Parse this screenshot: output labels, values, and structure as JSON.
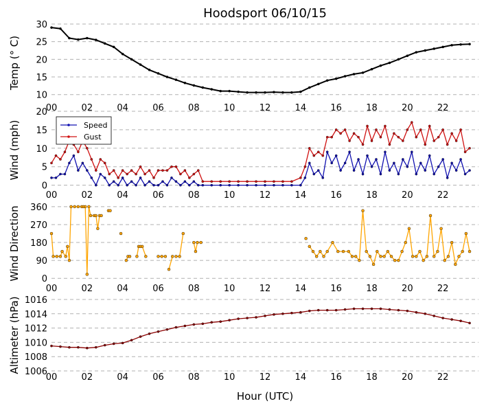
{
  "title": "Hoodsport 06/10/15",
  "xlabel": "Hour (UTC)",
  "x_ticks": [
    "00",
    "02",
    "04",
    "06",
    "08",
    "10",
    "12",
    "14",
    "16",
    "18",
    "20",
    "22"
  ],
  "x_tick_values": [
    0,
    2,
    4,
    6,
    8,
    10,
    12,
    14,
    16,
    18,
    20,
    22
  ],
  "xlim": [
    0,
    24
  ],
  "chart_data": [
    {
      "type": "line",
      "ylabel": "Temp ($^\\circ$C)",
      "ylabel_display": "Temp (° C)",
      "ylim": [
        8,
        30
      ],
      "yticks": [
        10,
        15,
        20,
        25,
        30
      ],
      "grid": "horizontal dashed",
      "series": [
        {
          "color": "#000000",
          "marker": "dot",
          "x": [
            0,
            0.5,
            1,
            1.5,
            2,
            2.5,
            3,
            3.5,
            4,
            4.5,
            5,
            5.5,
            6,
            6.5,
            7,
            7.5,
            8,
            8.5,
            9,
            9.5,
            10,
            10.5,
            11,
            11.5,
            12,
            12.5,
            13,
            13.5,
            14,
            14.5,
            15,
            15.5,
            16,
            16.5,
            17,
            17.5,
            18,
            18.5,
            19,
            19.5,
            20,
            20.5,
            21,
            21.5,
            22,
            22.5,
            23,
            23.5
          ],
          "values": [
            29,
            28.7,
            26,
            25.6,
            26,
            25.5,
            24.5,
            23.5,
            21.5,
            20,
            18.5,
            17,
            16,
            15,
            14.2,
            13.3,
            12.6,
            12,
            11.5,
            11,
            11,
            10.8,
            10.6,
            10.6,
            10.6,
            10.7,
            10.6,
            10.6,
            10.8,
            12,
            13,
            14,
            14.5,
            15.2,
            15.8,
            16.2,
            17.2,
            18.2,
            19,
            20,
            21,
            22,
            22.5,
            23,
            23.5,
            24,
            24.2,
            24.3
          ]
        }
      ]
    },
    {
      "type": "line",
      "ylabel": "Wind (mph)",
      "ylim": [
        -1,
        20
      ],
      "yticks": [
        0,
        5,
        10,
        15,
        20
      ],
      "grid": "horizontal dashed",
      "legend": "upper-left",
      "series": [
        {
          "name": "Speed",
          "color": "#1010b0",
          "x": [
            0,
            0.25,
            0.5,
            0.75,
            1,
            1.25,
            1.5,
            1.75,
            2,
            2.25,
            2.5,
            2.75,
            3,
            3.25,
            3.5,
            3.75,
            4,
            4.25,
            4.5,
            4.75,
            5,
            5.25,
            5.5,
            5.75,
            6,
            6.25,
            6.5,
            6.75,
            7,
            7.25,
            7.5,
            7.75,
            8,
            8.25,
            8.5,
            9,
            9.5,
            10,
            10.5,
            11,
            11.5,
            12,
            12.5,
            13,
            13.5,
            14,
            14.25,
            14.5,
            14.75,
            15,
            15.25,
            15.5,
            15.75,
            16,
            16.25,
            16.5,
            16.75,
            17,
            17.25,
            17.5,
            17.75,
            18,
            18.25,
            18.5,
            18.75,
            19,
            19.25,
            19.5,
            19.75,
            20,
            20.25,
            20.5,
            20.75,
            21,
            21.25,
            21.5,
            21.75,
            22,
            22.25,
            22.5,
            22.75,
            23,
            23.25,
            23.5
          ],
          "values": [
            2,
            2,
            3,
            3,
            6,
            8,
            4,
            6,
            4,
            2,
            0,
            3,
            2,
            0,
            1,
            0,
            2,
            0,
            1,
            0,
            2,
            0,
            1,
            0,
            0,
            1,
            0,
            2,
            1,
            0,
            1,
            0,
            1,
            0,
            0,
            0,
            0,
            0,
            0,
            0,
            0,
            0,
            0,
            0,
            0,
            0,
            2,
            6,
            3,
            4,
            2,
            9,
            6,
            8,
            4,
            6,
            9,
            4,
            7,
            3,
            8,
            5,
            7,
            3,
            9,
            4,
            6,
            3,
            7,
            5,
            9,
            3,
            6,
            4,
            8,
            3,
            5,
            7,
            2,
            6,
            4,
            7,
            3,
            4
          ]
        },
        {
          "name": "Gust",
          "color": "#d01010",
          "x": [
            0,
            0.25,
            0.5,
            0.75,
            1,
            1.25,
            1.5,
            1.75,
            2,
            2.25,
            2.5,
            2.75,
            3,
            3.25,
            3.5,
            3.75,
            4,
            4.25,
            4.5,
            4.75,
            5,
            5.25,
            5.5,
            5.75,
            6,
            6.25,
            6.5,
            6.75,
            7,
            7.25,
            7.5,
            7.75,
            8,
            8.25,
            8.5,
            9,
            9.5,
            10,
            10.5,
            11,
            11.5,
            12,
            12.5,
            13,
            13.5,
            14,
            14.25,
            14.5,
            14.75,
            15,
            15.25,
            15.5,
            15.75,
            16,
            16.25,
            16.5,
            16.75,
            17,
            17.25,
            17.5,
            17.75,
            18,
            18.25,
            18.5,
            18.75,
            19,
            19.25,
            19.5,
            19.75,
            20,
            20.25,
            20.5,
            20.75,
            21,
            21.25,
            21.5,
            21.75,
            22,
            22.25,
            22.5,
            22.75,
            23,
            23.25,
            23.5
          ],
          "values": [
            6,
            8,
            7,
            9,
            12,
            11,
            9,
            12,
            10,
            7,
            4,
            7,
            6,
            3,
            4,
            2,
            4,
            3,
            4,
            3,
            5,
            3,
            4,
            2,
            4,
            4,
            4,
            5,
            5,
            3,
            4,
            2,
            3,
            4,
            1,
            1,
            1,
            1,
            1,
            1,
            1,
            1,
            1,
            1,
            1,
            2,
            5,
            10,
            8,
            9,
            8,
            13,
            13,
            15,
            14,
            15,
            12,
            14,
            13,
            11,
            16,
            12,
            15,
            13,
            16,
            11,
            14,
            13,
            12,
            15,
            17,
            13,
            15,
            11,
            16,
            12,
            13,
            15,
            11,
            14,
            12,
            15,
            9,
            10
          ]
        }
      ]
    },
    {
      "type": "line",
      "ylabel": "Wind Direction",
      "ylim": [
        -20,
        370
      ],
      "yticks": [
        0,
        90,
        180,
        270,
        360
      ],
      "grid": "horizontal dashed",
      "series": [
        {
          "color": "#ffa500",
          "segments": [
            {
              "x": [
                0,
                0.1,
                0.3,
                0.5,
                0.6,
                0.8,
                0.9,
                1.0,
                1.1,
                1.3,
                1.5,
                1.7,
                1.8,
                1.9,
                2.0,
                2.1,
                2.2,
                2.4,
                2.5,
                2.6,
                2.7,
                2.8
              ],
              "values": [
                225,
                110,
                110,
                110,
                135,
                110,
                160,
                90,
                360,
                360,
                360,
                360,
                360,
                360,
                20,
                360,
                315,
                315,
                315,
                250,
                315,
                315
              ]
            },
            {
              "x": [
                3.2,
                3.3
              ],
              "values": [
                340,
                340
              ]
            },
            {
              "x": [
                3.9
              ],
              "values": [
                225
              ]
            },
            {
              "x": [
                4.2,
                4.3,
                4.4
              ],
              "values": [
                90,
                110,
                110
              ]
            },
            {
              "x": [
                4.8,
                4.9,
                5.0,
                5.1,
                5.3
              ],
              "values": [
                110,
                160,
                160,
                160,
                110
              ]
            },
            {
              "x": [
                6.0,
                6.2,
                6.4
              ],
              "values": [
                110,
                110,
                110
              ]
            },
            {
              "x": [
                6.6,
                6.8
              ],
              "values": [
                45,
                110
              ]
            },
            {
              "x": [
                7.0,
                7.2,
                7.4
              ],
              "values": [
                110,
                110,
                225
              ]
            },
            {
              "x": [
                8.0,
                8.1,
                8.2,
                8.4
              ],
              "values": [
                180,
                135,
                180,
                180
              ]
            },
            {
              "x": [
                14.3
              ],
              "values": [
                200
              ]
            },
            {
              "x": [
                14.5,
                14.7,
                14.9,
                15.1,
                15.3,
                15.5,
                15.8,
                16.1,
                16.4,
                16.7,
                16.9,
                17.1,
                17.3,
                17.5,
                17.7,
                17.9,
                18.1,
                18.3,
                18.5,
                18.7,
                18.9,
                19.1,
                19.3,
                19.5,
                19.7,
                19.9,
                20.1,
                20.3,
                20.5,
                20.7,
                20.9,
                21.1,
                21.3,
                21.5,
                21.7,
                21.9,
                22.1,
                22.3,
                22.5,
                22.7,
                22.9,
                23.1,
                23.3,
                23.5
              ],
              "values": [
                160,
                135,
                110,
                135,
                110,
                135,
                180,
                135,
                135,
                135,
                110,
                110,
                90,
                340,
                135,
                110,
                70,
                135,
                110,
                110,
                135,
                110,
                90,
                90,
                135,
                180,
                250,
                110,
                110,
                135,
                90,
                110,
                315,
                110,
                135,
                250,
                90,
                110,
                180,
                70,
                110,
                135,
                225,
                135
              ]
            }
          ]
        }
      ]
    },
    {
      "type": "line",
      "ylabel": "Altimeter (hPa)",
      "ylim": [
        1006,
        1016
      ],
      "yticks": [
        1006,
        1008,
        1010,
        1012,
        1014,
        1016
      ],
      "grid": "horizontal dashed",
      "series": [
        {
          "color": "#8b0000",
          "x": [
            0,
            0.5,
            1,
            1.5,
            2,
            2.5,
            3,
            3.5,
            4,
            4.5,
            5,
            5.5,
            6,
            6.5,
            7,
            7.5,
            8,
            8.5,
            9,
            9.5,
            10,
            10.5,
            11,
            11.5,
            12,
            12.5,
            13,
            13.5,
            14,
            14.5,
            15,
            15.5,
            16,
            16.5,
            17,
            17.5,
            18,
            18.5,
            19,
            19.5,
            20,
            20.5,
            21,
            21.5,
            22,
            22.5,
            23,
            23.5
          ],
          "values": [
            1009.5,
            1009.4,
            1009.3,
            1009.3,
            1009.2,
            1009.3,
            1009.6,
            1009.8,
            1009.9,
            1010.3,
            1010.8,
            1011.2,
            1011.5,
            1011.8,
            1012.1,
            1012.3,
            1012.5,
            1012.6,
            1012.8,
            1012.9,
            1013.1,
            1013.3,
            1013.4,
            1013.5,
            1013.7,
            1013.9,
            1014.0,
            1014.1,
            1014.2,
            1014.4,
            1014.5,
            1014.5,
            1014.5,
            1014.6,
            1014.7,
            1014.7,
            1014.7,
            1014.7,
            1014.6,
            1014.5,
            1014.4,
            1014.2,
            1014.0,
            1013.7,
            1013.4,
            1013.2,
            1013.0,
            1012.7
          ]
        }
      ]
    }
  ]
}
